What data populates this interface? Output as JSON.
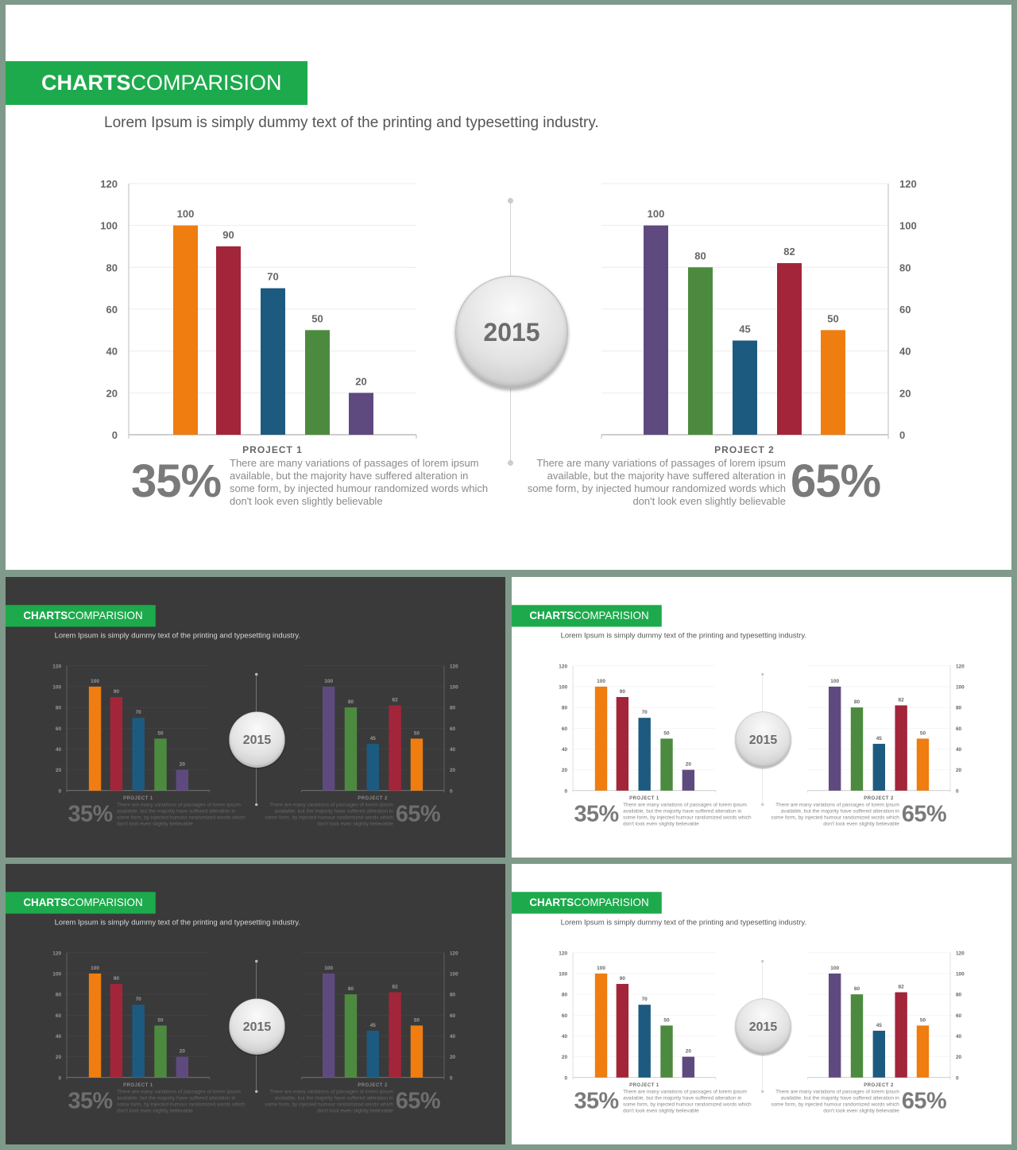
{
  "title": {
    "strong": "CHARTS",
    "light": "COMPARISION"
  },
  "subtitle": "Lorem Ipsum is simply dummy text of the printing and typesetting industry.",
  "year": "2015",
  "project1": {
    "label": "PROJECT 1",
    "percent": "35%",
    "description": "There are many variations of passages of lorem ipsum available, but the majority have suffered alteration in some form, by injected humour randomized words which don't look even slightly believable"
  },
  "project2": {
    "label": "PROJECT 2",
    "percent": "65%",
    "description": "There are many variations of passages of lorem ipsum available, but the majority have suffered alteration in some form, by injected humour randomized words which don't look even slightly believable"
  },
  "themes": {
    "light": {
      "background": "#ffffff",
      "grid": "#ececec",
      "axis": "#bdbdbd",
      "tick_text": "#666666"
    },
    "dark": {
      "background": "#3a3a3a",
      "grid": "#4a4a4a",
      "axis": "#8a8a8a",
      "tick_text": "#9a9a9a"
    }
  },
  "accent": "#1daa4c",
  "slides": [
    {
      "theme": "light"
    },
    {
      "theme": "dark"
    },
    {
      "theme": "light"
    },
    {
      "theme": "dark"
    },
    {
      "theme": "light"
    }
  ],
  "chart_data": [
    {
      "type": "bar",
      "name": "PROJECT 1",
      "categories": [
        "",
        "",
        "",
        "",
        ""
      ],
      "values": [
        100,
        90,
        70,
        50,
        20
      ],
      "colors": [
        "#ef7d10",
        "#a3253a",
        "#1d5a80",
        "#4c8b3f",
        "#5e4a7f"
      ],
      "ylim": [
        0,
        120
      ],
      "yticks": [
        0,
        20,
        40,
        60,
        80,
        100,
        120
      ],
      "axis_side": "left",
      "grid": true
    },
    {
      "type": "bar",
      "name": "PROJECT 2",
      "categories": [
        "",
        "",
        "",
        "",
        ""
      ],
      "values": [
        100,
        80,
        45,
        82,
        50
      ],
      "colors": [
        "#5e4a7f",
        "#4c8b3f",
        "#1d5a80",
        "#a3253a",
        "#ef7d10"
      ],
      "ylim": [
        0,
        120
      ],
      "yticks": [
        0,
        20,
        40,
        60,
        80,
        100,
        120
      ],
      "axis_side": "right",
      "grid": true
    }
  ]
}
